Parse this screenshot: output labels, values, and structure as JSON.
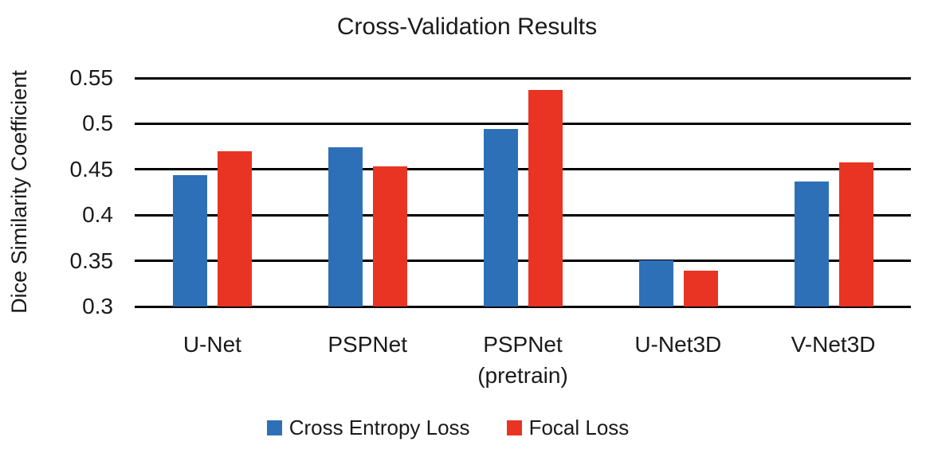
{
  "chart_data": {
    "type": "bar",
    "title": "Cross-Validation Results",
    "ylabel": "Dice Similarity Coefficient",
    "xlabel": "",
    "categories": [
      {
        "label": "U-Net",
        "sublabel": ""
      },
      {
        "label": "PSPNet",
        "sublabel": ""
      },
      {
        "label": "PSPNet",
        "sublabel": "(pretrain)"
      },
      {
        "label": "U-Net3D",
        "sublabel": ""
      },
      {
        "label": "V-Net3D",
        "sublabel": ""
      }
    ],
    "series": [
      {
        "name": "Cross Entropy Loss",
        "color": "#2E70B8",
        "values": [
          0.444,
          0.474,
          0.494,
          0.351,
          0.437
        ]
      },
      {
        "name": "Focal Loss",
        "color": "#E93323",
        "values": [
          0.47,
          0.453,
          0.537,
          0.339,
          0.458
        ]
      }
    ],
    "ylim": [
      0.3,
      0.55
    ],
    "yticks": [
      0.55,
      0.5,
      0.45,
      0.4,
      0.35,
      0.3
    ],
    "ytick_labels": [
      "0.55",
      "0.5",
      "0.45",
      "0.4",
      "0.35",
      "0.3"
    ],
    "grid": true,
    "legend_position": "bottom",
    "axis_color": "#000000",
    "text_color": "#1a1a1a"
  }
}
